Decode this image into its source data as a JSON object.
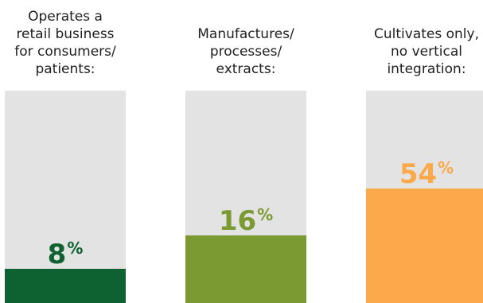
{
  "chart_data": {
    "type": "bar",
    "categories": [
      "Operates a retail business for consumers/ patients:",
      "Manufactures/ processes/ extracts:",
      "Cultivates only, no vertical integration:"
    ],
    "category_lines": [
      [
        "Operates a",
        "retail business",
        "for consumers/",
        "patients:"
      ],
      [
        "Manufactures/",
        "processes/",
        "extracts:"
      ],
      [
        "Cultivates only,",
        "no vertical",
        "integration:"
      ]
    ],
    "values": [
      8,
      16,
      54
    ],
    "value_labels": [
      "8",
      "16",
      "54"
    ],
    "unit": "%",
    "ylim": [
      0,
      100
    ],
    "grid": false,
    "colors": [
      "#0e6130",
      "#7b9a31",
      "#fba94a"
    ],
    "track_color": "#e3e3e3"
  }
}
